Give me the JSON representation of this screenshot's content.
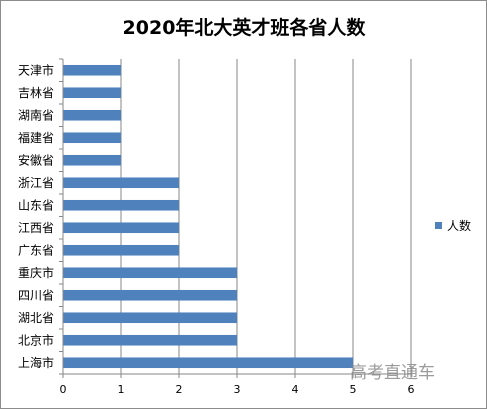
{
  "chart_data": {
    "type": "bar",
    "orientation": "horizontal",
    "title": "2020年北大英才班各省人数",
    "categories": [
      "上海市",
      "北京市",
      "湖北省",
      "四川省",
      "重庆市",
      "广东省",
      "江西省",
      "山东省",
      "浙江省",
      "安徽省",
      "福建省",
      "湖南省",
      "吉林省",
      "天津市"
    ],
    "series": [
      {
        "name": "人数",
        "values": [
          5,
          3,
          3,
          3,
          3,
          2,
          2,
          2,
          2,
          1,
          1,
          1,
          1,
          1
        ]
      }
    ],
    "xlim": [
      0,
      6
    ],
    "xticks": [
      "0",
      "1",
      "2",
      "3",
      "4",
      "5",
      "6"
    ],
    "grid": "vertical",
    "legend": "right",
    "bar_color": "#4f81bd",
    "grid_color": "#878787"
  },
  "watermark": "高考直通车"
}
